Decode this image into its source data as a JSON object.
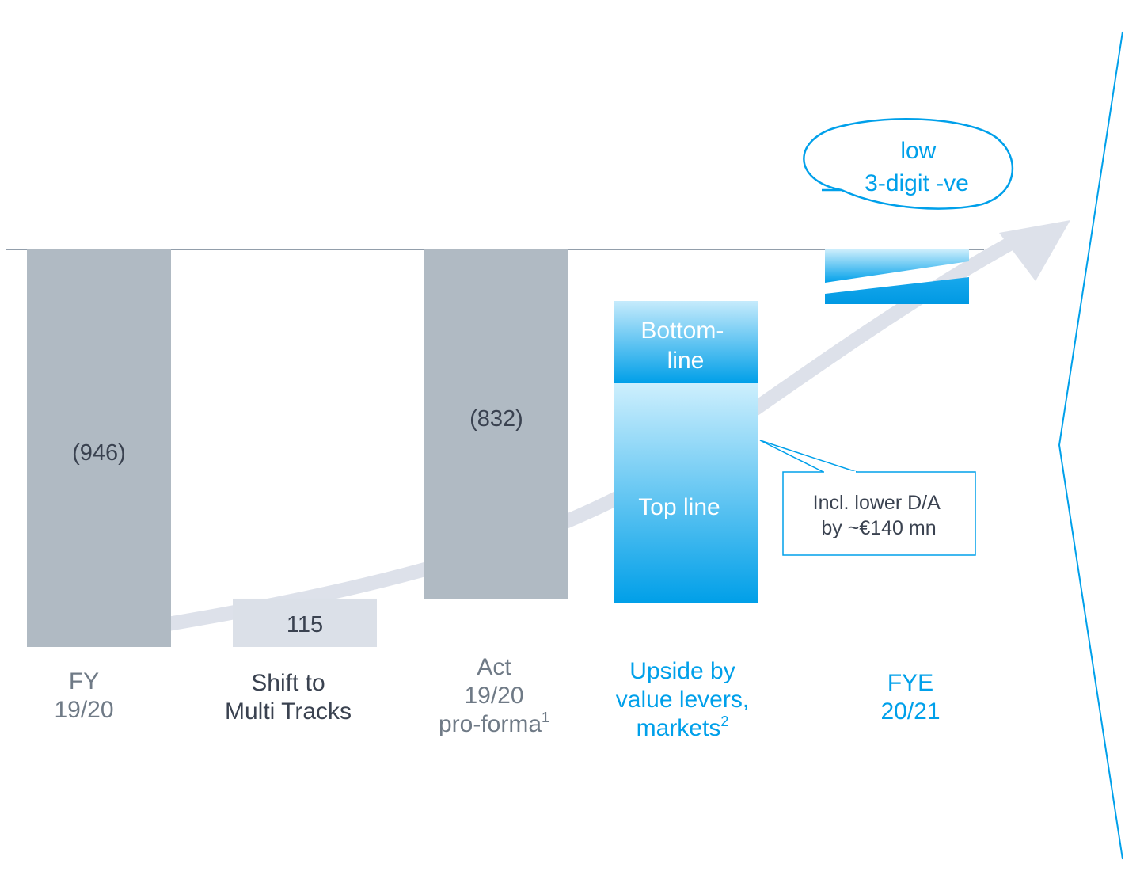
{
  "colors": {
    "grey_bar": "#b0bac3",
    "light_bar": "#dbe0e8",
    "accent_blue": "#00a0ea",
    "light_blue": "#cceeff",
    "baseline": "#6f7f8f",
    "arrow": "#dde1ea",
    "dark_text": "#3a4250",
    "grey_text": "#6f7a86"
  },
  "chart_data": {
    "type": "bar",
    "subtype": "waterfall",
    "title": "",
    "categories": [
      {
        "lines": [
          "FY",
          "19/20"
        ],
        "sup": "",
        "color_role": "grey_text"
      },
      {
        "lines": [
          "Shift to",
          "Multi Tracks"
        ],
        "sup": "",
        "color_role": "dark_text"
      },
      {
        "lines": [
          "Act",
          "19/20",
          "pro-forma"
        ],
        "sup": "1",
        "color_role": "grey_text"
      },
      {
        "lines": [
          "Upside by",
          "value levers,",
          "markets"
        ],
        "sup": "2",
        "color_role": "accent_blue"
      },
      {
        "lines": [
          "FYE",
          "20/21"
        ],
        "sup": "",
        "color_role": "accent_blue"
      }
    ],
    "values": [
      -946,
      115,
      -832,
      null,
      null
    ],
    "value_labels": [
      "(946)",
      "115",
      "(832)",
      "",
      ""
    ],
    "upside_segments": [
      "Bottom-\nline",
      "Top line"
    ],
    "fye_callout": [
      "low",
      "3-digit -ve"
    ],
    "annotation": [
      "Incl. lower D/A",
      "by ~€140 mn"
    ],
    "ylim": [
      -1000,
      0
    ],
    "grid": false,
    "legend": "none"
  }
}
